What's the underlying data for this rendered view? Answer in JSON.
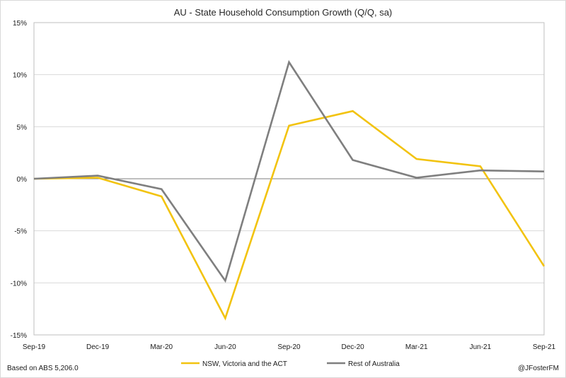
{
  "chart_data": {
    "type": "line",
    "title": "AU - State Household Consumption Growth (Q/Q, sa)",
    "categories": [
      "Sep-19",
      "Dec-19",
      "Mar-20",
      "Jun-20",
      "Sep-20",
      "Dec-20",
      "Mar-21",
      "Jun-21",
      "Sep-21"
    ],
    "ylim": [
      -15,
      15
    ],
    "yticks": [
      15,
      10,
      5,
      0,
      -5,
      -10,
      -15
    ],
    "ytick_labels": [
      "15%",
      "10%",
      "5%",
      "0%",
      "-5%",
      "-10%",
      "-15%"
    ],
    "grid": true,
    "legend_position": "bottom",
    "series": [
      {
        "name": "NSW, Victoria and the ACT",
        "color": "#f2c30f",
        "values": [
          0.0,
          0.1,
          -1.7,
          -13.4,
          5.1,
          6.5,
          1.9,
          1.2,
          -8.4
        ]
      },
      {
        "name": "Rest of Australia",
        "color": "#7f7f7f",
        "values": [
          0.0,
          0.3,
          -1.0,
          -9.8,
          11.2,
          1.8,
          0.1,
          0.8,
          0.7
        ]
      }
    ],
    "source_note": "Based on ABS 5,206.0",
    "credit": "@JFosterFM"
  }
}
